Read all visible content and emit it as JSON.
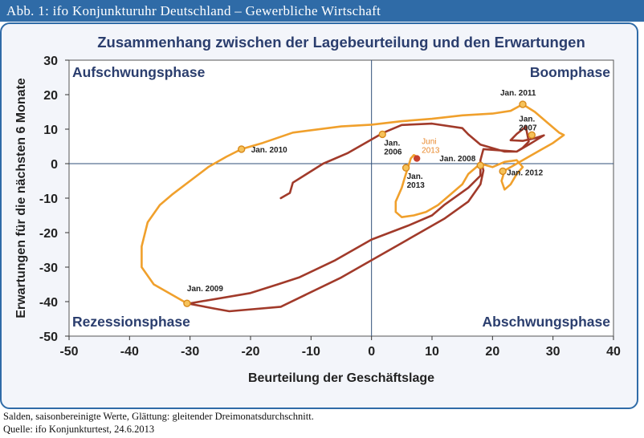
{
  "header": {
    "title": "Abb. 1: ifo Konjunkturuhr Deutschland – Gewerbliche Wirtschaft"
  },
  "chart_data": {
    "type": "line",
    "title": "Zusammenhang zwischen der Lagebeurteilung und den Erwartungen",
    "xlabel": "Beurteilung der Geschäftslage",
    "ylabel": "Erwartungen für die nächsten 6 Monate",
    "xlim": [
      -50,
      40
    ],
    "ylim": [
      -50,
      30
    ],
    "xticks": [
      -50,
      -40,
      -30,
      -20,
      -10,
      0,
      10,
      20,
      30,
      40
    ],
    "yticks": [
      -50,
      -40,
      -30,
      -20,
      -10,
      0,
      10,
      20,
      30
    ],
    "grid": false,
    "quadrants": {
      "top_left": "Aufschwungsphase",
      "top_right": "Boomphase",
      "bottom_left": "Rezessionsphase",
      "bottom_right": "Abschwungsphase"
    },
    "series": [
      {
        "color": "#a13a2a",
        "points": [
          [
            -15,
            -10
          ],
          [
            -13.5,
            -8.5
          ],
          [
            -13,
            -5.5
          ],
          [
            -8,
            0
          ],
          [
            -4,
            3
          ],
          [
            -2,
            5
          ],
          [
            0,
            7
          ],
          [
            2,
            9
          ],
          [
            5,
            11.2
          ],
          [
            10,
            11.6
          ],
          [
            15,
            10.3
          ],
          [
            16,
            8.5
          ],
          [
            18,
            5.5
          ],
          [
            22,
            3.5
          ],
          [
            24,
            3.5
          ],
          [
            25,
            4.6
          ],
          [
            26,
            6.4
          ],
          [
            25.5,
            10.7
          ],
          [
            24,
            8.6
          ],
          [
            23,
            6.8
          ],
          [
            25,
            6.6
          ],
          [
            27,
            7.4
          ],
          [
            28.5,
            8.2
          ],
          [
            26,
            5.5
          ],
          [
            24,
            3.5
          ],
          [
            18.5,
            4.2
          ],
          [
            18,
            1
          ],
          [
            18,
            -0.8
          ],
          [
            18,
            -3.5
          ],
          [
            16,
            -7
          ],
          [
            12,
            -12
          ],
          [
            10,
            -15
          ],
          [
            6,
            -18
          ],
          [
            0,
            -22
          ],
          [
            -6,
            -28
          ],
          [
            -12,
            -33
          ],
          [
            -15.5,
            -35
          ],
          [
            -20,
            -37.5
          ],
          [
            -30,
            -40.5
          ],
          [
            -30.5,
            -40.5
          ],
          [
            -26,
            -42
          ],
          [
            -23.5,
            -42.8
          ],
          [
            -15,
            -41.5
          ],
          [
            -5,
            -33
          ],
          [
            0,
            -28
          ],
          [
            4,
            -24
          ],
          [
            8,
            -20
          ],
          [
            12,
            -16
          ],
          [
            16,
            -11
          ],
          [
            18,
            -6
          ],
          [
            18.5,
            -2
          ],
          [
            18.3,
            -0.5
          ]
        ]
      },
      {
        "color": "#f0a02c",
        "points": [
          [
            -30.5,
            -40.5
          ],
          [
            -33,
            -38
          ],
          [
            -36,
            -35
          ],
          [
            -38,
            -30
          ],
          [
            -38,
            -24
          ],
          [
            -37,
            -17
          ],
          [
            -35,
            -12
          ],
          [
            -33,
            -9
          ],
          [
            -30,
            -5
          ],
          [
            -27,
            -1
          ],
          [
            -24,
            2
          ],
          [
            -21.5,
            4.2
          ],
          [
            -18,
            6
          ],
          [
            -13,
            9
          ],
          [
            -5,
            10.8
          ],
          [
            0,
            11.3
          ],
          [
            5,
            12.3
          ],
          [
            10,
            13
          ],
          [
            15,
            14
          ],
          [
            20,
            14.5
          ],
          [
            23,
            15.3
          ],
          [
            25,
            17.2
          ],
          [
            27,
            15
          ],
          [
            29,
            12
          ],
          [
            31,
            9
          ],
          [
            31.8,
            8.3
          ],
          [
            30,
            6
          ],
          [
            28,
            4
          ],
          [
            26,
            2
          ],
          [
            24,
            0
          ],
          [
            22,
            -2
          ],
          [
            21.5,
            -5
          ],
          [
            22,
            -7.5
          ],
          [
            23,
            -6
          ],
          [
            24,
            -3
          ],
          [
            25,
            -1
          ],
          [
            24,
            1
          ],
          [
            22,
            0.5
          ],
          [
            20,
            -1
          ],
          [
            18,
            0
          ],
          [
            16,
            -3
          ],
          [
            15,
            -6
          ],
          [
            13,
            -9
          ],
          [
            11,
            -12
          ],
          [
            9,
            -14
          ],
          [
            7,
            -15
          ],
          [
            5,
            -15.5
          ],
          [
            4,
            -14
          ],
          [
            4,
            -11
          ],
          [
            5,
            -7
          ],
          [
            5.5,
            -4
          ],
          [
            6,
            -1.2
          ],
          [
            6.5,
            1.5
          ],
          [
            7,
            2.5
          ],
          [
            7.5,
            2
          ]
        ]
      }
    ],
    "annotations": [
      {
        "label": "Jan. 2009",
        "x": -30.5,
        "y": -40.5
      },
      {
        "label": "Jan. 2010",
        "x": -21.5,
        "y": 4.2
      },
      {
        "label": "Jan. 2006",
        "x": 1.8,
        "y": 8.5
      },
      {
        "label": "Jan. 2007",
        "x": 26.5,
        "y": 8.3
      },
      {
        "label": "Jan. 2008",
        "x": 18,
        "y": -0.5
      },
      {
        "label": "Jan. 2011",
        "x": 25,
        "y": 17.2
      },
      {
        "label": "Jan. 2012",
        "x": 21.7,
        "y": -2.2
      },
      {
        "label": "Jan. 2013",
        "x": 5.7,
        "y": -1.2
      },
      {
        "label": "Juni 2013",
        "x": 7.5,
        "y": 1.5
      }
    ]
  },
  "footer": {
    "note": "Salden, saisonbereinigte Werte, Glättung: gleitender Dreimonatsdurchschnitt.",
    "source": "Quelle: ifo Konjunkturtest, 24.6.2013"
  }
}
